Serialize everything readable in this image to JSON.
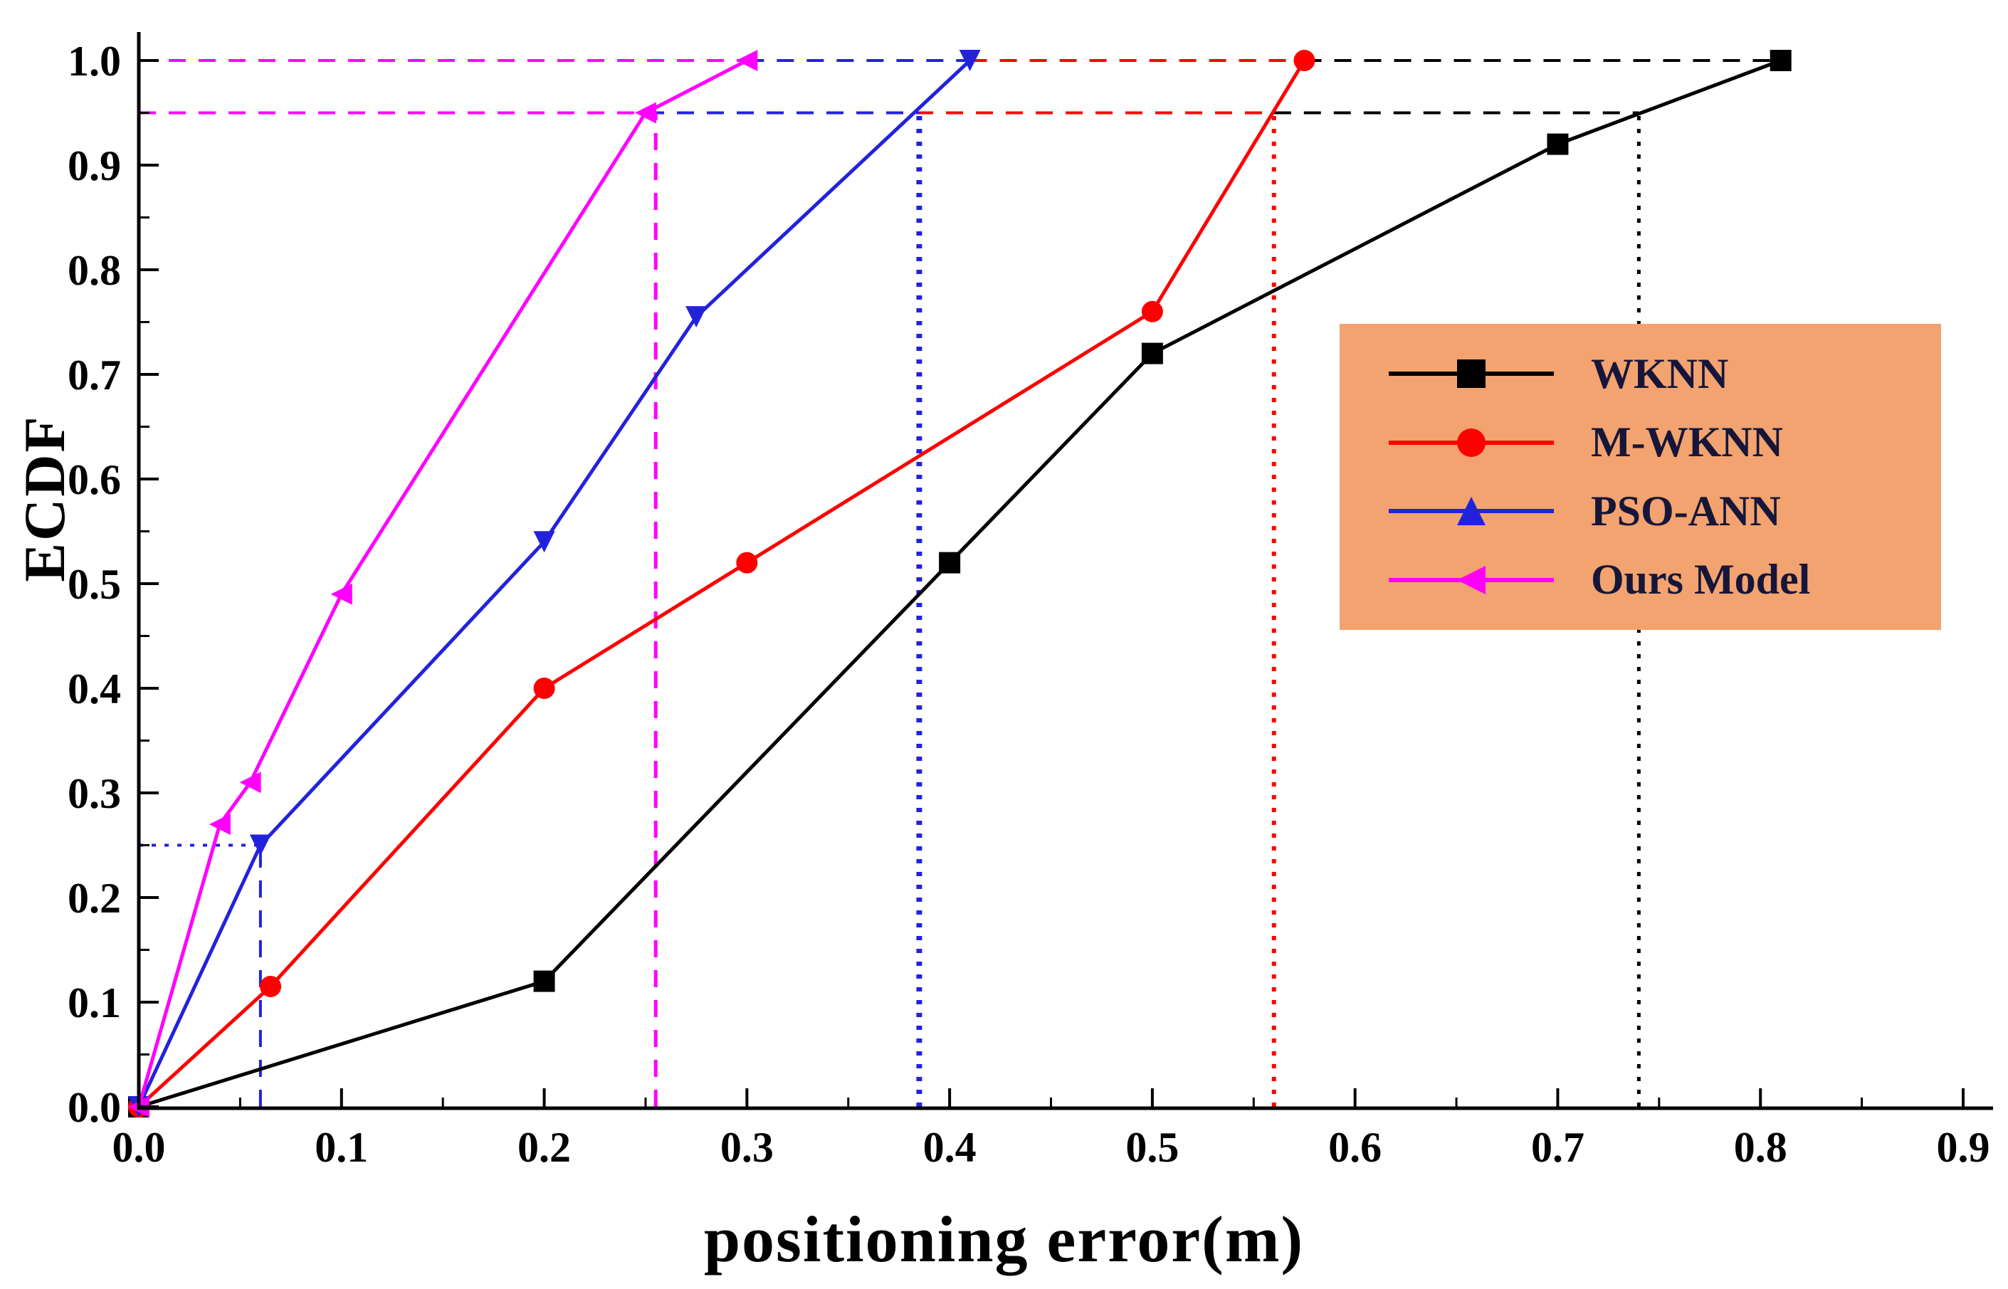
{
  "chart_data": {
    "type": "line",
    "title": "",
    "xlabel": "positioning error(m)",
    "ylabel": "ECDF",
    "xlim": [
      0,
      0.9
    ],
    "ylim": [
      0,
      1.0
    ],
    "grid": false,
    "x_ticks": [
      "0.0",
      "0.1",
      "0.2",
      "0.3",
      "0.4",
      "0.5",
      "0.6",
      "0.7",
      "0.8",
      "0.9"
    ],
    "y_ticks": [
      "0.0",
      "0.1",
      "0.2",
      "0.3",
      "0.4",
      "0.5",
      "0.6",
      "0.7",
      "0.8",
      "0.9",
      "1.0"
    ],
    "legend": {
      "position": "upper-right-inside",
      "background": "#F3A36F",
      "text_color": "#16163a",
      "entries": [
        "WKNN",
        "M-WKNN",
        "PSO-ANN",
        "Ours Model"
      ]
    },
    "series": [
      {
        "name": "WKNN",
        "color": "#000000",
        "marker": "square",
        "points": [
          [
            0,
            0
          ],
          [
            0.2,
            0.12
          ],
          [
            0.4,
            0.52
          ],
          [
            0.5,
            0.72
          ],
          [
            0.7,
            0.92
          ],
          [
            0.81,
            1.0
          ]
        ]
      },
      {
        "name": "M-WKNN",
        "color": "#FF0000",
        "marker": "circle",
        "points": [
          [
            0,
            0
          ],
          [
            0.065,
            0.115
          ],
          [
            0.2,
            0.4
          ],
          [
            0.3,
            0.52
          ],
          [
            0.5,
            0.76
          ],
          [
            0.575,
            1.0
          ]
        ]
      },
      {
        "name": "PSO-ANN",
        "color": "#2222DD",
        "marker": "triangle-down",
        "legend_marker": "triangle-up",
        "points": [
          [
            0,
            0
          ],
          [
            0.06,
            0.25
          ],
          [
            0.2,
            0.54
          ],
          [
            0.275,
            0.755
          ],
          [
            0.41,
            1.0
          ]
        ]
      },
      {
        "name": "Ours Model",
        "color": "#FF00FF",
        "marker": "triangle-left",
        "points": [
          [
            0,
            0
          ],
          [
            0.04,
            0.27
          ],
          [
            0.055,
            0.31
          ],
          [
            0.1,
            0.49
          ],
          [
            0.25,
            0.95
          ],
          [
            0.3,
            1.0
          ]
        ]
      }
    ],
    "guides": [
      {
        "orient": "h",
        "at": 1.0,
        "from": 0.0,
        "to": 0.3,
        "color": "#FF00FF",
        "style": "dashed",
        "width": 4
      },
      {
        "orient": "h",
        "at": 1.0,
        "from": 0.3,
        "to": 0.41,
        "color": "#2222DD",
        "style": "dashed",
        "width": 4
      },
      {
        "orient": "h",
        "at": 1.0,
        "from": 0.41,
        "to": 0.575,
        "color": "#FF0000",
        "style": "dashed",
        "width": 4
      },
      {
        "orient": "h",
        "at": 1.0,
        "from": 0.575,
        "to": 0.81,
        "color": "#000000",
        "style": "dashed",
        "width": 4
      },
      {
        "orient": "h",
        "at": 0.95,
        "from": 0.56,
        "to": 0.74,
        "color": "#000000",
        "style": "dashed",
        "width": 4
      },
      {
        "orient": "h",
        "at": 0.95,
        "from": 0.0,
        "to": 0.56,
        "color": "#FF0000",
        "style": "dashed",
        "width": 4
      },
      {
        "orient": "h",
        "at": 0.95,
        "from": 0.0,
        "to": 0.385,
        "color": "#2222DD",
        "style": "dashed",
        "width": 4
      },
      {
        "orient": "h",
        "at": 0.95,
        "from": 0.0,
        "to": 0.25,
        "color": "#FF00FF",
        "style": "dashed",
        "width": 4
      },
      {
        "orient": "h",
        "at": 0.25,
        "from": 0.0,
        "to": 0.06,
        "color": "#2222DD",
        "style": "dotted",
        "width": 4
      },
      {
        "orient": "v",
        "at": 0.06,
        "from": 0.0,
        "to": 0.25,
        "color": "#2222DD",
        "style": "dashed",
        "width": 4
      },
      {
        "orient": "v",
        "at": 0.255,
        "from": 0.0,
        "to": 0.95,
        "color": "#FF00FF",
        "style": "dashed",
        "width": 5
      },
      {
        "orient": "v",
        "at": 0.385,
        "from": 0.0,
        "to": 0.95,
        "color": "#2222DD",
        "style": "dotted",
        "width": 8
      },
      {
        "orient": "v",
        "at": 0.56,
        "from": 0.0,
        "to": 0.95,
        "color": "#FF0000",
        "style": "dotted",
        "width": 6
      },
      {
        "orient": "v",
        "at": 0.74,
        "from": 0.0,
        "to": 0.95,
        "color": "#000000",
        "style": "dotted",
        "width": 5
      }
    ]
  }
}
